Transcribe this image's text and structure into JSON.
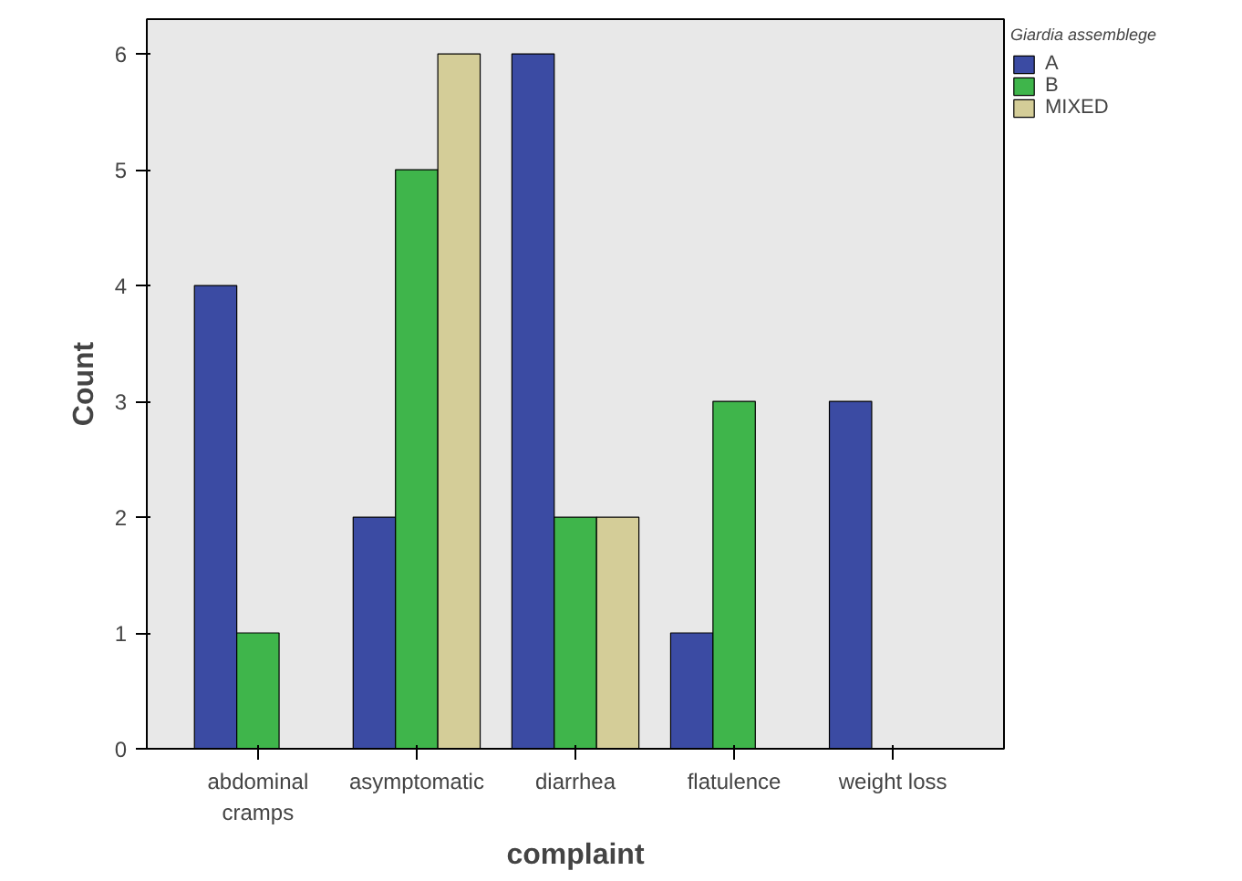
{
  "chart_data": {
    "type": "bar",
    "xlabel": "complaint",
    "ylabel": "Count",
    "legend_title": "Giardia assemblege",
    "categories": [
      "abdominal cramps",
      "asymptomatic",
      "diarrhea",
      "flatulence",
      "weight loss"
    ],
    "series": [
      {
        "name": "A",
        "color": "#3b4ba3",
        "values": [
          4,
          2,
          6,
          1,
          3
        ]
      },
      {
        "name": "B",
        "color": "#3fb54b",
        "values": [
          1,
          5,
          2,
          3,
          null
        ]
      },
      {
        "name": "MIXED",
        "color": "#d4cd98",
        "values": [
          null,
          6,
          2,
          null,
          null
        ]
      }
    ],
    "ylim": [
      0,
      6.3
    ],
    "yticks": [
      0,
      1,
      2,
      3,
      4,
      5,
      6
    ],
    "grid": false,
    "legend": "top right"
  }
}
